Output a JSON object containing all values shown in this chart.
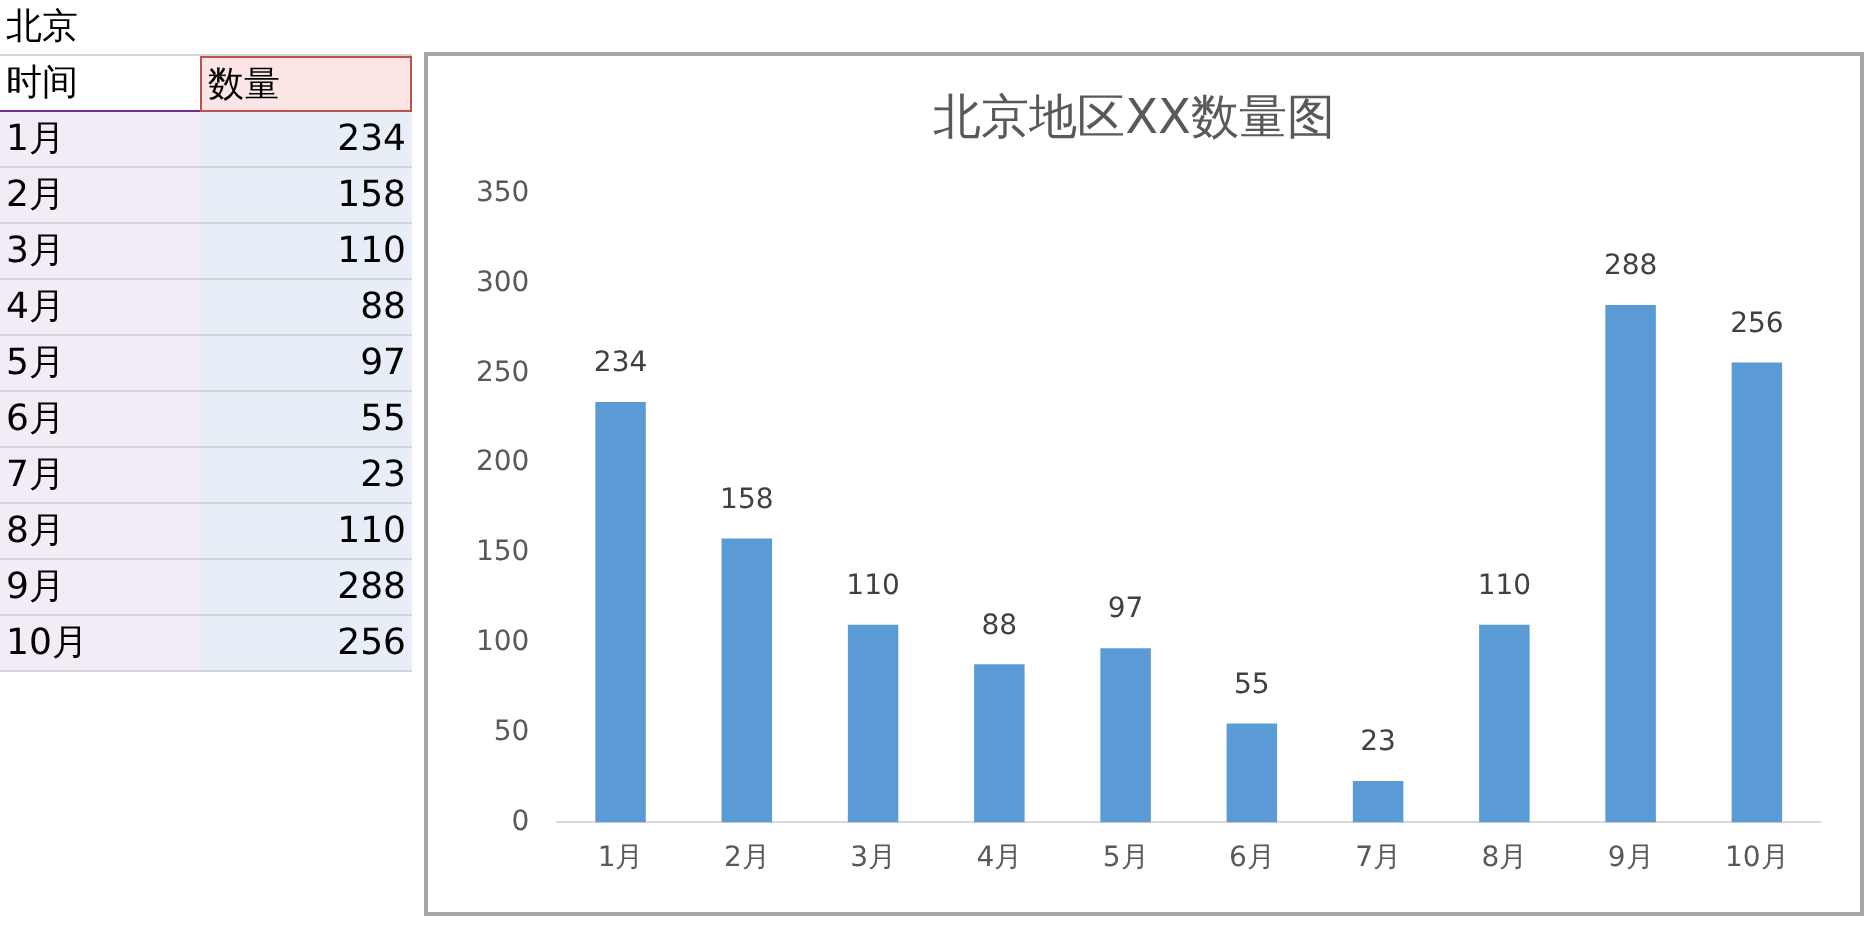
{
  "chart_data": {
    "type": "bar",
    "title": "北京地区XX数量图",
    "categories": [
      "1月",
      "2月",
      "3月",
      "4月",
      "5月",
      "6月",
      "7月",
      "8月",
      "9月",
      "10月"
    ],
    "values": [
      234,
      158,
      110,
      88,
      97,
      55,
      23,
      110,
      288,
      256
    ],
    "color": "#5b9bd5",
    "ylim": [
      0,
      350
    ],
    "yticks": [
      0,
      50,
      100,
      150,
      200,
      250,
      300,
      350
    ],
    "grid": false,
    "legend": false,
    "data_labels": true,
    "annotations": [
      "北京",
      "时间",
      "数量",
      "234",
      "158",
      "110",
      "88",
      "97",
      "55",
      "23",
      "110",
      "288",
      "256"
    ]
  }
}
